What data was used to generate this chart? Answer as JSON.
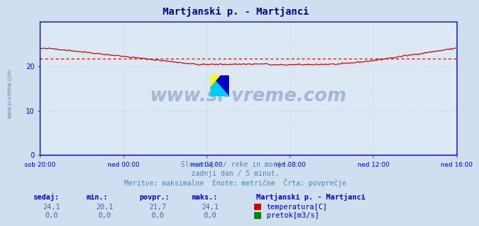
{
  "title": "Martjanski p. - Martjanci",
  "bg_color": "#d0dff0",
  "plot_bg_color": "#dde8f5",
  "grid_color_major": "#b8c8dc",
  "grid_color_minor": "#ccd8e8",
  "title_color": "#000080",
  "text_color": "#4488bb",
  "axis_color": "#0000cc",
  "tick_color": "#0000cc",
  "ylabel_range": [
    0,
    30
  ],
  "yticks": [
    0,
    10,
    20
  ],
  "xtick_labels": [
    "sob 20:00",
    "ned 00:00",
    "ned 04:00",
    "ned 08:00",
    "ned 12:00",
    "ned 16:00"
  ],
  "n_points": 289,
  "temp_avg": 21.7,
  "temp_line_color": "#cc0000",
  "avg_line_color": "#cc0000",
  "flow_line_color": "#008800",
  "watermark_text": "www.si-vreme.com",
  "watermark_color": "#1a4a9a",
  "footer_line1": "Slovenija / reke in morje.",
  "footer_line2": "zadnji dan / 5 minut.",
  "footer_line3": "Meritve: maksimalne  Enote: metrične  Črta: povprečje",
  "legend_title": "Martjanski p. - Martjanci",
  "legend_temp": "temperatura[C]",
  "legend_flow": "pretok[m3/s]",
  "label_sedaj": "sedaj:",
  "label_min": "min.:",
  "label_povpr": "povpr.:",
  "label_maks": "maks.:",
  "temp_vals": [
    "24,1",
    "20,1",
    "21,7",
    "24,1"
  ],
  "flow_vals": [
    "0,0",
    "0,0",
    "0,0",
    "0,0"
  ],
  "left_watermark": "www.si-vreme.com"
}
